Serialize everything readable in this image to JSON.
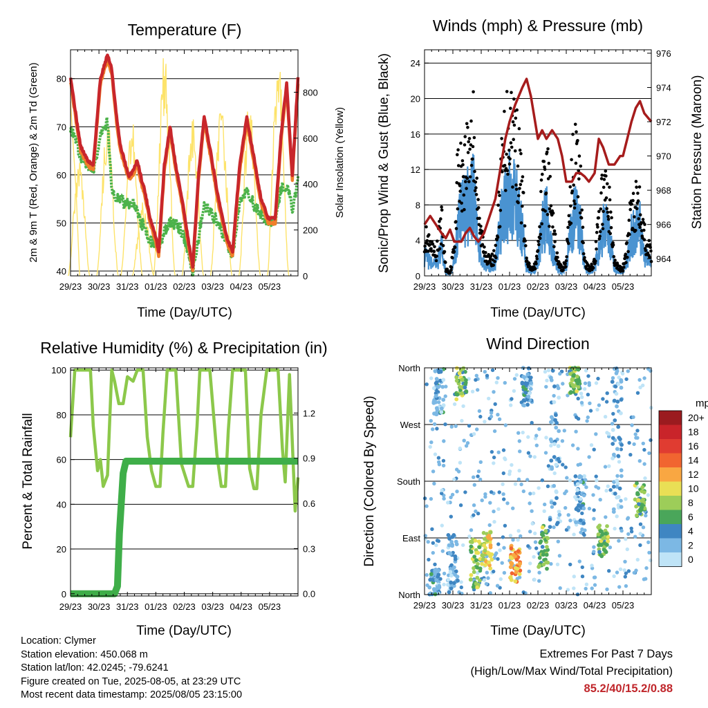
{
  "common": {
    "xlabel": "Time (Day/UTC)",
    "xticks": [
      "29/23",
      "30/23",
      "31/23",
      "01/23",
      "02/23",
      "03/23",
      "04/23",
      "05/23"
    ]
  },
  "info": {
    "location": "Location: Clymer",
    "elevation": "Station elevation: 450.068 m",
    "latlon": "Station lat/lon: 42.0245; -79.6241",
    "created": "Figure created on Tue, 2025-08-05, at 23:29 UTC",
    "recent": "Most recent data timestamp: 2025/08/05 23:15:00"
  },
  "extremes": {
    "line1": "Extremes For Past 7 Days",
    "line2": "(High/Low/Max Wind/Total Precipitation)",
    "value": "85.2/40/15.2/0.88"
  },
  "colors": {
    "temp2m": "#c8262b",
    "temp9m": "#f07f2a",
    "dewpoint": "#4cb24a",
    "solar": "#fde36a",
    "gust": "#000000",
    "wind": "#4a93d1",
    "pressure": "#a61c1c",
    "rh": "#8cc84b",
    "precip": "#3fae49"
  },
  "chart_data": [
    {
      "type": "line",
      "title": "Temperature (F)",
      "xlabel": "Time (Day/UTC)",
      "ylabel": "2m & 9m T (Red, Orange) & 2m Td (Green)",
      "ylabel_right": "Solar Insolation (Yellow)",
      "ylim": [
        39,
        86
      ],
      "yticks": [
        40,
        50,
        60,
        70,
        80
      ],
      "ylim_right": [
        0,
        985
      ],
      "yticks_right": [
        0,
        200,
        400,
        600,
        800
      ],
      "x": [
        0,
        0.2,
        0.35,
        0.6,
        0.8,
        1.05,
        1.3,
        1.45,
        1.6,
        1.75,
        1.9,
        2.05,
        2.2,
        2.35,
        2.5,
        2.6,
        2.8,
        3.0,
        3.1,
        3.3,
        3.5,
        3.7,
        3.95,
        4.15,
        4.3,
        4.5,
        4.7,
        4.95,
        5.2,
        5.5,
        5.7,
        5.95,
        6.2,
        6.5,
        6.7,
        6.95,
        7.2,
        7.4,
        7.6,
        7.8,
        8.0
      ],
      "series": [
        {
          "name": "2m T",
          "values": [
            80.5,
            72,
            66,
            63,
            62,
            80,
            85,
            82,
            73,
            66,
            63,
            59.5,
            61,
            63,
            59,
            57,
            51,
            47,
            44,
            62,
            70,
            62,
            54,
            46,
            41,
            60,
            72,
            64,
            55,
            47,
            44,
            62,
            72,
            62,
            55,
            51,
            51,
            68,
            79,
            60,
            80
          ]
        },
        {
          "name": "9m T",
          "values": [
            79.5,
            71,
            65,
            62,
            61,
            79,
            84,
            81,
            72,
            65,
            62,
            59,
            60,
            62,
            58,
            56,
            50,
            46,
            43,
            61,
            69,
            61,
            53,
            45,
            40,
            59,
            71,
            63,
            54,
            46,
            43,
            61,
            71,
            61,
            54,
            50,
            50,
            67,
            78,
            59,
            79
          ]
        },
        {
          "name": "2m Td",
          "values": [
            70,
            67,
            64,
            62,
            61,
            68,
            71,
            57,
            55,
            55,
            54,
            54,
            54,
            52,
            50,
            49,
            46,
            46,
            44,
            48,
            50,
            50,
            48,
            44,
            40,
            47,
            54,
            52,
            50,
            46,
            43,
            54,
            57,
            53,
            52,
            50,
            50,
            57,
            58,
            53,
            59
          ]
        },
        {
          "name": "Solar Insolation",
          "axis": "right",
          "values": [
            760,
            360,
            0,
            0,
            0,
            0,
            0,
            0,
            0,
            0,
            0,
            0,
            0,
            0,
            0,
            0,
            0,
            0,
            0,
            0,
            0,
            0,
            0,
            0,
            0,
            0,
            0,
            0,
            0,
            0,
            0,
            0,
            0,
            0,
            0,
            0,
            0,
            0,
            0,
            0,
            0
          ],
          "peaks": [
            {
              "day": 0.3,
              "value": 520
            },
            {
              "day": 1.3,
              "value": 700
            },
            {
              "day": 2.15,
              "value": 700
            },
            {
              "day": 2.55,
              "value": 330
            },
            {
              "day": 3.3,
              "value": 980
            },
            {
              "day": 4.3,
              "value": 700
            },
            {
              "day": 5.3,
              "value": 770
            },
            {
              "day": 6.3,
              "value": 790
            },
            {
              "day": 7.3,
              "value": 980
            }
          ]
        }
      ]
    },
    {
      "type": "line",
      "title": "Winds (mph) & Pressure (mb)",
      "xlabel": "Time (Day/UTC)",
      "ylabel": "Sonic/Prop Wind & Gust (Blue, Black)",
      "ylabel_right": "Station Pressure (Maroon)",
      "ylim": [
        0,
        25.5
      ],
      "yticks": [
        0,
        4,
        8,
        12,
        16,
        20,
        24
      ],
      "ylim_right": [
        963.0,
        976.2
      ],
      "yticks_right": [
        964,
        966,
        968,
        970,
        972,
        974,
        976
      ],
      "x": [
        0,
        0.2,
        0.4,
        0.6,
        0.75,
        0.9,
        1.05,
        1.15,
        1.3,
        1.45,
        1.6,
        1.75,
        1.9,
        2.1,
        2.3,
        2.5,
        2.7,
        2.85,
        3.0,
        3.2,
        3.45,
        3.6,
        3.75,
        3.85,
        4.0,
        4.15,
        4.3,
        4.5,
        4.7,
        4.85,
        5.0,
        5.2,
        5.35,
        5.5,
        5.65,
        5.8,
        6.0,
        6.15,
        6.3,
        6.5,
        6.7,
        6.9,
        7.0,
        7.15,
        7.3,
        7.45,
        7.6,
        7.75,
        8.0
      ],
      "series": [
        {
          "name": "Gust",
          "values": [
            6,
            4,
            3,
            8,
            1,
            0.5,
            4,
            14,
            15,
            17,
            20,
            21,
            8,
            4,
            2,
            3,
            14,
            20,
            23,
            21,
            12,
            2,
            1,
            1,
            3,
            12,
            16,
            8,
            2,
            1,
            2,
            15,
            17,
            13,
            2,
            1,
            2,
            8,
            12,
            11,
            2,
            1,
            1,
            4,
            10,
            11,
            12,
            6,
            3
          ]
        },
        {
          "name": "Wind",
          "values": [
            3,
            2,
            1.5,
            4,
            0.5,
            0.3,
            2,
            7,
            9,
            10,
            12,
            13,
            4,
            2,
            1,
            2,
            8,
            11,
            12,
            11,
            7,
            1,
            0.5,
            0.5,
            2,
            7,
            9,
            4,
            1,
            0.5,
            1,
            8,
            9,
            7,
            1,
            0.5,
            1,
            4,
            7,
            7,
            1,
            0.5,
            0.5,
            2,
            6,
            7,
            8,
            3,
            2
          ]
        },
        {
          "name": "Pressure",
          "axis": "right",
          "values": [
            966.0,
            966.5,
            966.0,
            965.5,
            965.2,
            965.7,
            965.0,
            965.0,
            965.0,
            965.5,
            965.8,
            965.3,
            965.0,
            965.5,
            966.5,
            967.5,
            969.5,
            971.0,
            972.0,
            973.0,
            974.0,
            974.5,
            973.5,
            972.5,
            971.0,
            971.5,
            971.0,
            971.5,
            971.0,
            970.0,
            968.5,
            968.5,
            969.0,
            969.0,
            968.8,
            968.5,
            969.0,
            971.0,
            970.5,
            969.5,
            969.5,
            970.0,
            970.0,
            971.0,
            972.0,
            972.8,
            973.2,
            972.5,
            972.0
          ]
        }
      ]
    },
    {
      "type": "line",
      "title": "Relative Humidity (%) & Precipitation (in)",
      "xlabel": "Time (Day/UTC)",
      "ylabel": "Percent & Total Rainfall",
      "ylim": [
        -1,
        101
      ],
      "yticks": [
        0,
        20,
        40,
        60,
        80,
        100
      ],
      "ylim_right": [
        -0.015,
        1.5
      ],
      "yticks_right": [
        "0.0",
        "0.3",
        "0.6",
        "0.9",
        "1.2"
      ],
      "x": [
        0,
        0.15,
        0.3,
        0.7,
        0.8,
        0.95,
        1.05,
        1.15,
        1.3,
        1.45,
        1.55,
        1.7,
        1.85,
        2.0,
        2.2,
        2.35,
        2.55,
        2.7,
        2.85,
        3.0,
        3.15,
        3.25,
        3.4,
        3.5,
        3.7,
        3.9,
        4.15,
        4.3,
        4.45,
        4.55,
        4.7,
        4.9,
        5.15,
        5.3,
        5.45,
        5.55,
        5.7,
        5.9,
        6.15,
        6.3,
        6.45,
        6.55,
        6.7,
        6.9,
        7.15,
        7.3,
        7.45,
        7.55,
        7.7,
        7.9,
        8.0
      ],
      "series": [
        {
          "name": "RH",
          "values": [
            70,
            100,
            100,
            100,
            75,
            55,
            60,
            48,
            53,
            100,
            95,
            85,
            85,
            97,
            95,
            100,
            100,
            70,
            55,
            48,
            48,
            72,
            100,
            100,
            100,
            58,
            48,
            48,
            75,
            100,
            100,
            100,
            62,
            48,
            48,
            73,
            100,
            100,
            100,
            56,
            47,
            47,
            80,
            100,
            100,
            100,
            65,
            50,
            98,
            37,
            52
          ]
        },
        {
          "name": "Precipitation",
          "axis": "right",
          "x": [
            0,
            1.0,
            1.55,
            1.65,
            1.72,
            1.85,
            1.95,
            2.1,
            2.3,
            8.0
          ],
          "values": [
            0,
            0,
            0,
            0.05,
            0.4,
            0.8,
            0.88,
            0.88,
            0.88,
            0.88
          ]
        }
      ]
    },
    {
      "type": "scatter",
      "title": "Wind Direction",
      "xlabel": "Time (Day/UTC)",
      "ylabel": "Direction (Colored By Speed)",
      "yticks": [
        "North",
        "East",
        "South",
        "West",
        "North"
      ],
      "ylim": [
        0,
        360
      ],
      "legend_title": "mph",
      "legend_labels": [
        "20+",
        "18",
        "16",
        "14",
        "12",
        "10",
        "8",
        "6",
        "4",
        "2",
        "0"
      ],
      "legend_colors": [
        "#9b1b1f",
        "#c9242a",
        "#e03c31",
        "#f16530",
        "#f9a742",
        "#e9df55",
        "#9dcd59",
        "#4aa65a",
        "#3f86c2",
        "#7cb8e4",
        "#bfe4f7"
      ],
      "clusters": [
        {
          "day": 0.35,
          "dir_from": 0,
          "dir_to": 40,
          "speed": 3
        },
        {
          "day": 0.5,
          "dir_from": 285,
          "dir_to": 360,
          "speed": 3
        },
        {
          "day": 1.0,
          "dir_from": 0,
          "dir_to": 100,
          "speed": 2
        },
        {
          "day": 1.3,
          "dir_from": 310,
          "dir_to": 360,
          "speed": 7
        },
        {
          "day": 1.8,
          "dir_from": 10,
          "dir_to": 90,
          "speed": 8
        },
        {
          "day": 2.2,
          "dir_from": 40,
          "dir_to": 100,
          "speed": 10
        },
        {
          "day": 3.2,
          "dir_from": 20,
          "dir_to": 80,
          "speed": 12
        },
        {
          "day": 3.6,
          "dir_from": 300,
          "dir_to": 360,
          "speed": 3
        },
        {
          "day": 4.2,
          "dir_from": 40,
          "dir_to": 110,
          "speed": 7
        },
        {
          "day": 4.6,
          "dir_from": 100,
          "dir_to": 360,
          "speed": 2
        },
        {
          "day": 5.3,
          "dir_from": 320,
          "dir_to": 360,
          "speed": 7
        },
        {
          "day": 5.5,
          "dir_from": 110,
          "dir_to": 190,
          "speed": 3
        },
        {
          "day": 6.3,
          "dir_from": 60,
          "dir_to": 110,
          "speed": 7
        },
        {
          "day": 6.8,
          "dir_from": 100,
          "dir_to": 360,
          "speed": 2
        },
        {
          "day": 7.6,
          "dir_from": 120,
          "dir_to": 180,
          "speed": 7
        }
      ]
    }
  ]
}
